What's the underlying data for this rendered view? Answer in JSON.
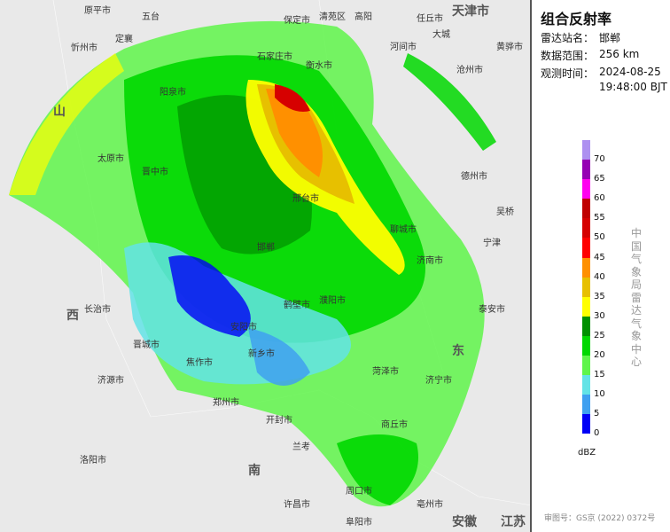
{
  "panel": {
    "title": "组合反射率",
    "station_label": "雷达站名：",
    "station": "邯郸",
    "range_label": "数据范围：",
    "range": "256 km",
    "time_label": "观测时间：",
    "date": "2024-08-25",
    "time": "19:48:00 BJT",
    "org": "中国气象局雷达气象中心",
    "approval": "审图号：GS京 (2022) 0372号"
  },
  "legend": {
    "unit": "dBZ",
    "ticks": [
      "70",
      "65",
      "60",
      "55",
      "50",
      "45",
      "40",
      "35",
      "30",
      "25",
      "20",
      "15",
      "10",
      "5",
      "0"
    ],
    "colors": [
      "#ad90f0",
      "#9600b4",
      "#ff00f0",
      "#c00000",
      "#d60000",
      "#ff0000",
      "#ff9000",
      "#e7c000",
      "#ffff00",
      "#009000",
      "#00d800",
      "#5ff54a",
      "#63e3e6",
      "#3fa0f0",
      "#0000f6"
    ]
  },
  "map": {
    "places": [
      {
        "n": "天津市",
        "c": "big"
      },
      {
        "n": "原平市"
      },
      {
        "n": "五台"
      },
      {
        "n": "保定市"
      },
      {
        "n": "清苑区"
      },
      {
        "n": "高阳"
      },
      {
        "n": "任丘市"
      },
      {
        "n": "大城"
      },
      {
        "n": "忻州市"
      },
      {
        "n": "定襄"
      },
      {
        "n": "石家庄市"
      },
      {
        "n": "衡水市"
      },
      {
        "n": "河间市"
      },
      {
        "n": "沧州市"
      },
      {
        "n": "黄骅市"
      },
      {
        "n": "阳泉市"
      },
      {
        "n": "太原市"
      },
      {
        "n": "晋中市"
      },
      {
        "n": "邢台市"
      },
      {
        "n": "德州市"
      },
      {
        "n": "吴桥"
      },
      {
        "n": "宁津"
      },
      {
        "n": "长治市"
      },
      {
        "n": "邯郸"
      },
      {
        "n": "聊城市"
      },
      {
        "n": "济南市"
      },
      {
        "n": "山",
        "c": "big"
      },
      {
        "n": "西",
        "c": "big"
      },
      {
        "n": "晋城市"
      },
      {
        "n": "安阳市"
      },
      {
        "n": "濮阳市"
      },
      {
        "n": "泰安市"
      },
      {
        "n": "东",
        "c": "big"
      },
      {
        "n": "济源市"
      },
      {
        "n": "焦作市"
      },
      {
        "n": "新乡市"
      },
      {
        "n": "鹤壁市"
      },
      {
        "n": "菏泽市"
      },
      {
        "n": "济宁市"
      },
      {
        "n": "郑州市"
      },
      {
        "n": "开封市"
      },
      {
        "n": "兰考"
      },
      {
        "n": "商丘市"
      },
      {
        "n": "洛阳市"
      },
      {
        "n": "许昌市"
      },
      {
        "n": "周口市"
      },
      {
        "n": "南",
        "c": "big"
      },
      {
        "n": "亳州市"
      },
      {
        "n": "阜阳市"
      },
      {
        "n": "安徽",
        "c": "big"
      },
      {
        "n": "江苏",
        "c": "big"
      }
    ]
  }
}
